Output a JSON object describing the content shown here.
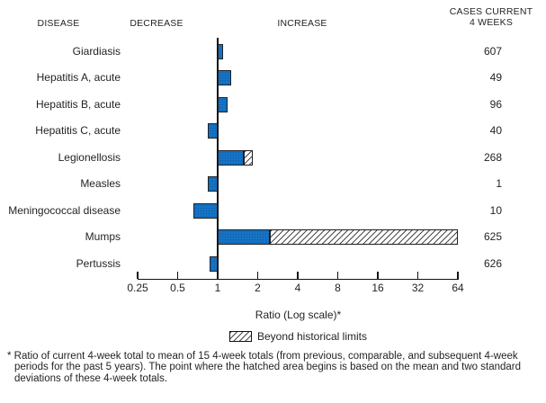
{
  "headers": {
    "disease": "DISEASE",
    "decrease": "DECREASE",
    "increase": "INCREASE",
    "cases_line1": "CASES CURRENT",
    "cases_line2": "4 WEEKS"
  },
  "axis": {
    "label": "Ratio (Log scale)*"
  },
  "legend": {
    "label": "Beyond historical limits"
  },
  "footnote": "* Ratio of current 4-week total to mean of 15 4-week totals (from previous, comparable, and subsequent 4-week periods for the past 5 years). The point where the hatched area begins is based on the mean and two standard deviations of these 4-week totals.",
  "colors": {
    "bar_blue": "#1573c4",
    "bar_dot": "#0d57a0",
    "bar_border": "#1f1f1f",
    "text": "#231f20",
    "hatch_line": "#4a4a4a"
  },
  "chart_data": {
    "type": "bar",
    "orientation": "horizontal",
    "scale": "log2",
    "baseline_ratio": 1,
    "xlim": [
      0.25,
      64
    ],
    "x_ticks": [
      "0.25",
      "0.5",
      "1",
      "2",
      "4",
      "8",
      "16",
      "32",
      "64"
    ],
    "xlabel": "Ratio (Log scale)*",
    "legend_entries": [
      "Beyond historical limits"
    ],
    "columns": [
      "DISEASE",
      "RATIO",
      "CASES CURRENT 4 WEEKS"
    ],
    "rows": [
      {
        "disease": "Giardiasis",
        "cases": "607",
        "ratio": 1.1,
        "beyond_limits_from": null
      },
      {
        "disease": "Hepatitis A, acute",
        "cases": "49",
        "ratio": 1.26,
        "beyond_limits_from": null
      },
      {
        "disease": "Hepatitis B, acute",
        "cases": "96",
        "ratio": 1.19,
        "beyond_limits_from": null
      },
      {
        "disease": "Hepatitis C, acute",
        "cases": "40",
        "ratio": 0.84,
        "beyond_limits_from": null
      },
      {
        "disease": "Legionellosis",
        "cases": "268",
        "ratio": 1.83,
        "beyond_limits_from": 1.56
      },
      {
        "disease": "Measles",
        "cases": "1",
        "ratio": 0.84,
        "beyond_limits_from": null
      },
      {
        "disease": "Meningococcal disease",
        "cases": "10",
        "ratio": 0.66,
        "beyond_limits_from": null
      },
      {
        "disease": "Mumps",
        "cases": "625",
        "ratio": 64,
        "beyond_limits_from": 2.45
      },
      {
        "disease": "Pertussis",
        "cases": "626",
        "ratio": 0.87,
        "beyond_limits_from": null
      }
    ]
  }
}
